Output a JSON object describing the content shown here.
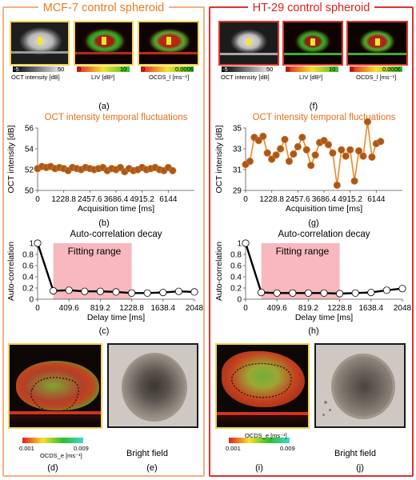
{
  "left": {
    "title": "MCF-7 control spheroid",
    "thumbs": {
      "oct": {
        "min": "-5",
        "max": "50",
        "label": "OCT intensity [dB]"
      },
      "liv": {
        "min": "0",
        "max": "10",
        "label": "LIV [dB²]"
      },
      "ocds": {
        "min": "0",
        "max": "0.0006",
        "label": "OCDS_l [ms⁻¹]"
      }
    },
    "caps": {
      "a": "(a)",
      "b": "(b)",
      "c": "(c)",
      "d": "(d)",
      "e": "(e)"
    },
    "large_cbar": {
      "min": "0.001",
      "max": "0.009",
      "label": "OCDS_e [ms⁻¹]"
    },
    "bright_field": "Bright field"
  },
  "right": {
    "title": "HT-29 control spheroid",
    "thumbs": {
      "oct": {
        "min": "-5",
        "max": "50",
        "label": "OCT intensity [dB]"
      },
      "liv": {
        "min": "0",
        "max": "10",
        "label": "LIV [dB²]"
      },
      "ocds": {
        "min": "0",
        "max": "0.0006",
        "label": "OCDS_l [ms⁻¹]"
      }
    },
    "caps": {
      "f": "(f)",
      "g": "(g)",
      "h": "(h)",
      "i": "(i)",
      "j": "(j)"
    },
    "large_cbar": {
      "min": "0.001",
      "max": "0.009",
      "label": "OCDS_e [ms⁻¹]"
    },
    "bright_field": "Bright field"
  },
  "chart_data": [
    {
      "id": "b",
      "type": "line",
      "title": "OCT intensity temporal fluctuations",
      "xlabel": "Acquisition time [ms]",
      "ylabel": "OCT intensity [dB]",
      "xlim": [
        0,
        7372.8
      ],
      "ylim": [
        50,
        56
      ],
      "xticks": [
        "0",
        "1228.8",
        "2457.6",
        "3686.4",
        "4915.2",
        "6144"
      ],
      "yticks": [
        "50",
        "52",
        "54",
        "56"
      ],
      "x": [
        0,
        204.8,
        409.6,
        614.4,
        819.2,
        1024,
        1228.8,
        1433.6,
        1638.4,
        1843.2,
        2048,
        2252.8,
        2457.6,
        2662.4,
        2867.2,
        3072,
        3276.8,
        3481.6,
        3686.4,
        3891.2,
        4096,
        4300.8,
        4505.6,
        4710.4,
        4915.2,
        5120,
        5324.8,
        5529.6,
        5734.4,
        5939.2,
        6144,
        6348.8
      ],
      "y": [
        52.1,
        52.3,
        52.2,
        52.3,
        52.1,
        52.2,
        52.1,
        51.9,
        52.2,
        52.1,
        52.0,
        52.2,
        52.1,
        52.0,
        52.1,
        52.2,
        51.9,
        52.1,
        52.0,
        52.2,
        51.8,
        52.1,
        51.9,
        52.0,
        52.2,
        52.0,
        52.1,
        52.2,
        52.0,
        51.9,
        52.2,
        51.9
      ]
    },
    {
      "id": "c",
      "type": "line",
      "title": "Auto-correlation decay",
      "xlabel": "Delay time [ms]",
      "ylabel": "Auto-correlation",
      "xlim": [
        0,
        2048
      ],
      "ylim": [
        0,
        1
      ],
      "xticks": [
        "0",
        "409.6",
        "819.2",
        "1228.8",
        "1638.4",
        "2048"
      ],
      "yticks": [
        "0",
        "0.2",
        "0.4",
        "0.6",
        "0.8",
        "1"
      ],
      "annotation": "Fitting range",
      "fitting_range": [
        204.8,
        1228.8
      ],
      "x": [
        0,
        204.8,
        409.6,
        614.4,
        819.2,
        1024,
        1228.8,
        1433.6,
        1638.4,
        1843.2,
        2048
      ],
      "y": [
        1,
        0.15,
        0.16,
        0.14,
        0.14,
        0.13,
        0.11,
        0.11,
        0.12,
        0.14,
        0.13
      ]
    },
    {
      "id": "g",
      "type": "line",
      "title": "OCT intensity temporal fluctuations",
      "xlabel": "Acquisition time [ms]",
      "ylabel": "OCT intensity [dB]",
      "xlim": [
        0,
        7372.8
      ],
      "ylim": [
        29,
        35
      ],
      "xticks": [
        "0",
        "1228.8",
        "2457.6",
        "3686.4",
        "4915.2",
        "6144"
      ],
      "yticks": [
        "29",
        "31",
        "33",
        "35"
      ],
      "x": [
        0,
        204.8,
        409.6,
        614.4,
        819.2,
        1024,
        1228.8,
        1433.6,
        1638.4,
        1843.2,
        2048,
        2252.8,
        2457.6,
        2662.4,
        2867.2,
        3072,
        3276.8,
        3481.6,
        3686.4,
        3891.2,
        4096,
        4300.8,
        4505.6,
        4710.4,
        4915.2,
        5120,
        5324.8,
        5529.6,
        5734.4,
        5939.2,
        6144,
        6348.8
      ],
      "y": [
        31.5,
        31.8,
        34.1,
        33.8,
        34.2,
        32.6,
        32.0,
        32.4,
        33.0,
        33.9,
        31.8,
        32.5,
        33.2,
        34.1,
        32.9,
        31.4,
        32.4,
        33.6,
        33.8,
        33.4,
        32.6,
        29.5,
        32.9,
        32.3,
        32.9,
        29.9,
        32.8,
        32.3,
        35.6,
        32.2,
        33.5,
        33.7
      ]
    },
    {
      "id": "h",
      "type": "line",
      "title": "Auto-correlation decay",
      "xlabel": "Delay time [ms]",
      "ylabel": "Auto-correlation",
      "xlim": [
        0,
        2048
      ],
      "ylim": [
        0,
        1
      ],
      "xticks": [
        "0",
        "409.6",
        "819.2",
        "1228.8",
        "1638.4",
        "2048"
      ],
      "yticks": [
        "0",
        "0.2",
        "0.4",
        "0.6",
        "0.8",
        "1"
      ],
      "annotation": "Fitting range",
      "fitting_range": [
        204.8,
        1228.8
      ],
      "x": [
        0,
        204.8,
        409.6,
        614.4,
        819.2,
        1024,
        1228.8,
        1433.6,
        1638.4,
        1843.2,
        2048
      ],
      "y": [
        1,
        0.12,
        0.11,
        0.11,
        0.11,
        0.11,
        0.1,
        0.11,
        0.12,
        0.16,
        0.19
      ]
    }
  ],
  "colors": {
    "left_frame": "#f3b183",
    "right_frame": "#e0322d",
    "line_orange": "#e9892b",
    "marker_brown": "#a9581b",
    "fitting_fill": "#f7b9be",
    "acf_line": "#000000"
  }
}
